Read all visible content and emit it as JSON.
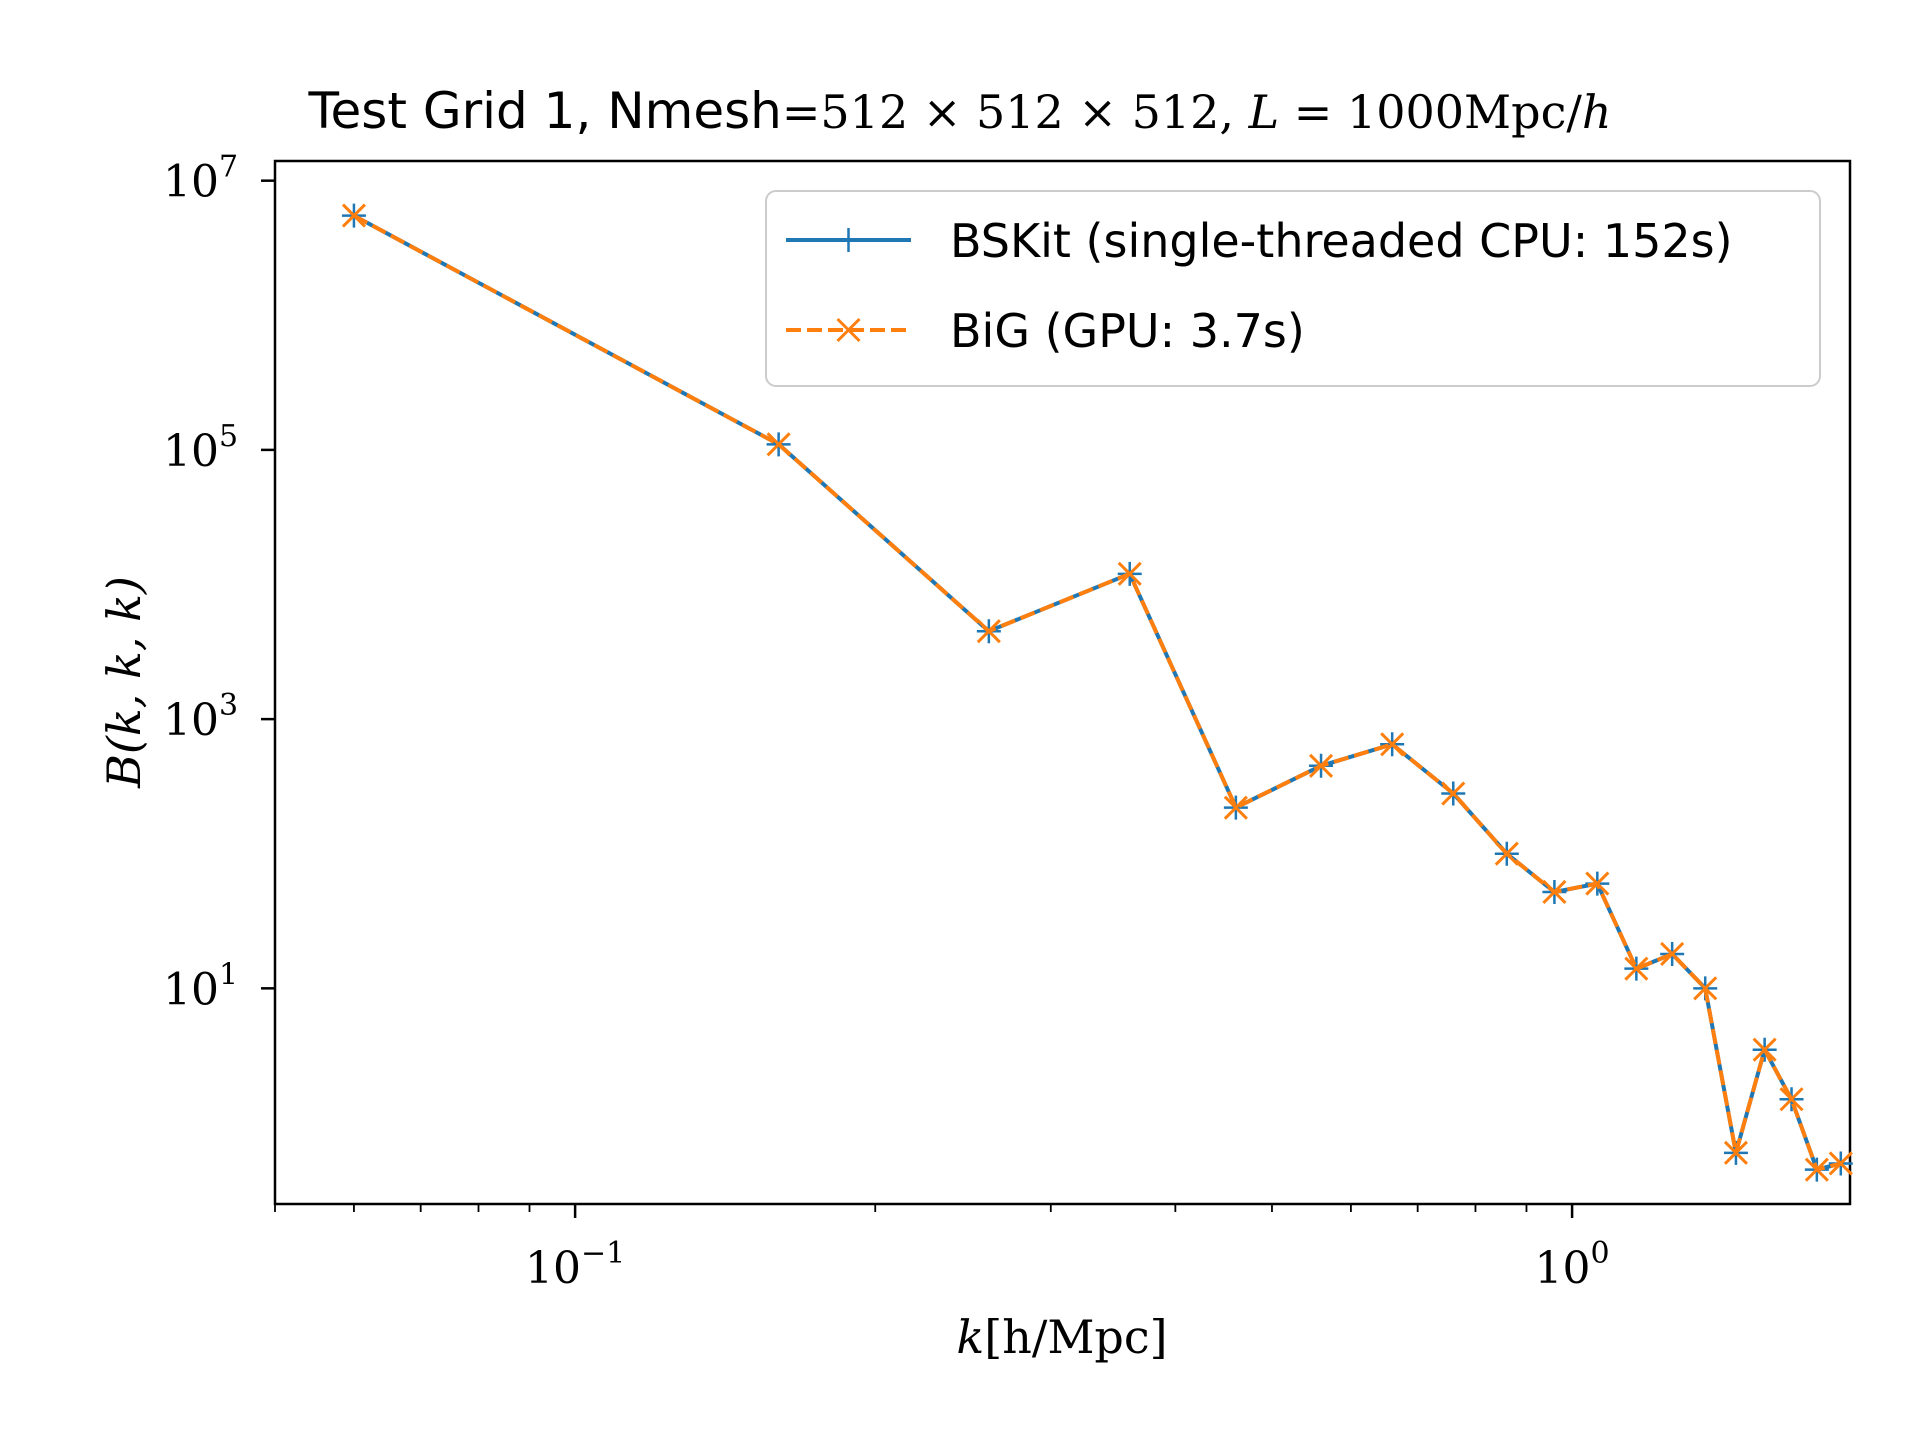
{
  "chart_data": {
    "type": "line",
    "title": {
      "prefix": "Test Grid 1, Nmesh",
      "mesh": "=512 × 512 × 512, ",
      "L": "L",
      "eq": " = 1000Mpc/",
      "h": "h"
    },
    "xlabel": {
      "k": "k",
      "rest": "[h/Mpc]"
    },
    "ylabel": "B(k, k, k)",
    "x_scale": "log",
    "y_scale": "log",
    "xlim": [
      0.05,
      1.9
    ],
    "ylim": [
      0.25,
      14000000
    ],
    "x_ticks": [
      {
        "value": 0.1,
        "base": "10",
        "exp": "−1"
      },
      {
        "value": 1,
        "base": "10",
        "exp": "0"
      }
    ],
    "y_ticks": [
      {
        "value": 10,
        "base": "10",
        "exp": "1"
      },
      {
        "value": 1000,
        "base": "10",
        "exp": "3"
      },
      {
        "value": 100000,
        "base": "10",
        "exp": "5"
      },
      {
        "value": 10000000,
        "base": "10",
        "exp": "7"
      }
    ],
    "grid": false,
    "legend_position": "top-right",
    "series": [
      {
        "name": "BSKit (single-threaded CPU: 152s)",
        "color": "#1f77b4",
        "style": "solid",
        "marker": "plus",
        "x": [
          0.06,
          0.16,
          0.26,
          0.36,
          0.46,
          0.56,
          0.66,
          0.76,
          0.86,
          0.96,
          1.06,
          1.16,
          1.26,
          1.36,
          1.46,
          1.56,
          1.66,
          1.76,
          1.86
        ],
        "y": [
          5500000,
          110000,
          4500,
          12000,
          220,
          450,
          650,
          280,
          100,
          52,
          60,
          14,
          18,
          10,
          0.6,
          3.5,
          1.5,
          0.45,
          0.5
        ]
      },
      {
        "name": "BiG (GPU: 3.7s)",
        "color": "#ff7f0e",
        "style": "dashed",
        "marker": "x",
        "x": [
          0.06,
          0.16,
          0.26,
          0.36,
          0.46,
          0.56,
          0.66,
          0.76,
          0.86,
          0.96,
          1.06,
          1.16,
          1.26,
          1.36,
          1.46,
          1.56,
          1.66,
          1.76,
          1.86
        ],
        "y": [
          5500000,
          110000,
          4500,
          12000,
          220,
          450,
          650,
          280,
          100,
          52,
          60,
          14,
          18,
          10,
          0.6,
          3.5,
          1.5,
          0.45,
          0.5
        ]
      }
    ]
  }
}
